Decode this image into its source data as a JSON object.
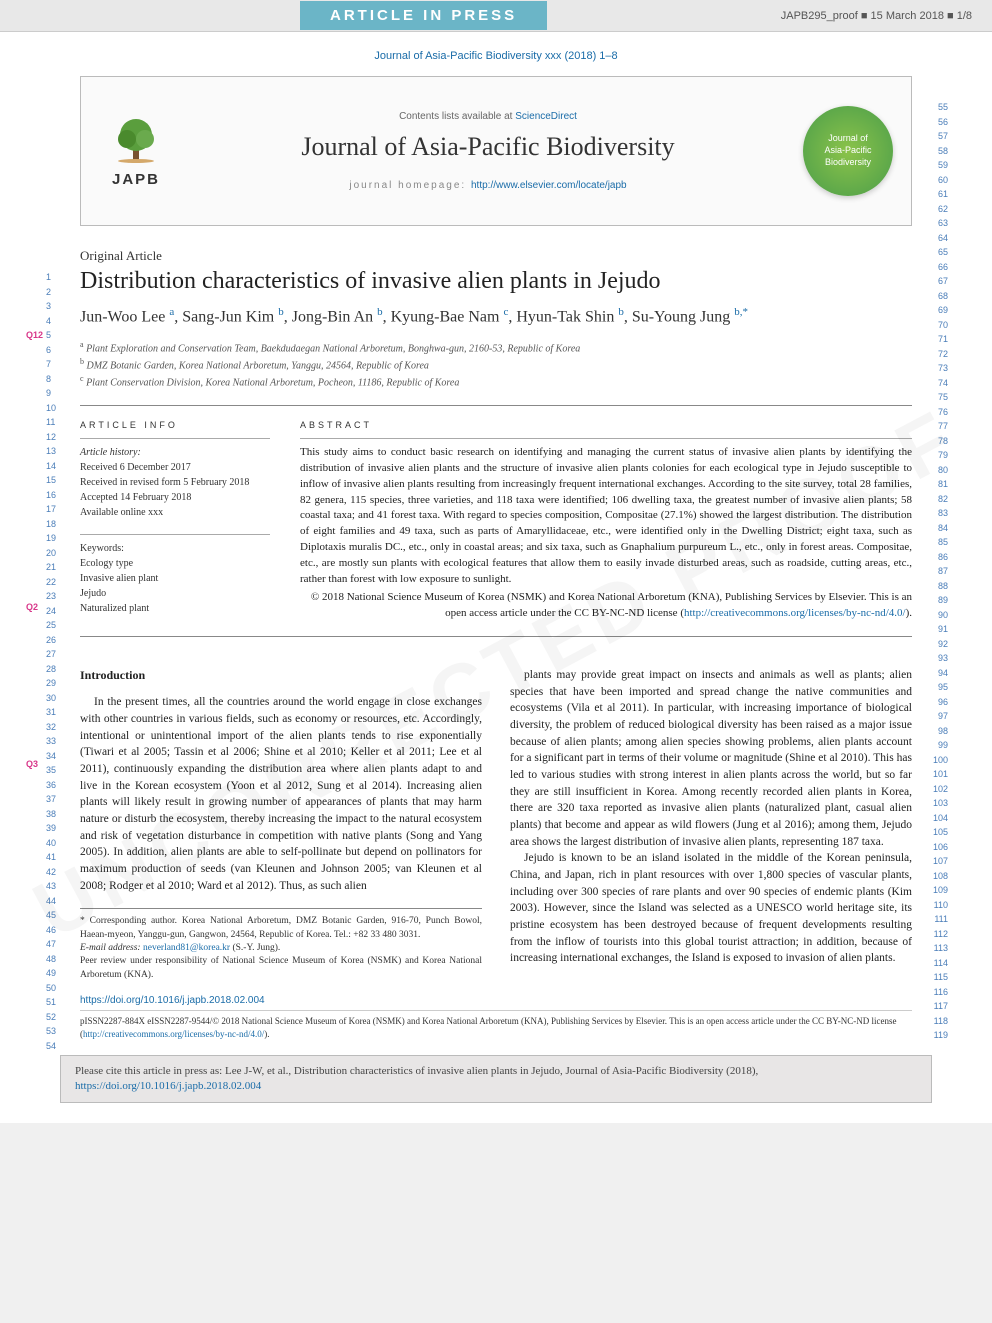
{
  "banner": {
    "article_in_press": "ARTICLE IN PRESS",
    "proof_info": "JAPB295_proof ■ 15 March 2018 ■ 1/8"
  },
  "running_head": "Journal of Asia-Pacific Biodiversity xxx (2018) 1–8",
  "journal_header": {
    "logo_label": "JAPB",
    "contents_lists_prefix": "Contents lists available at ",
    "contents_lists_link": "ScienceDirect",
    "journal_title": "Journal of Asia-Pacific Biodiversity",
    "homepage_prefix": "journal homepage: ",
    "homepage_url": "http://www.elsevier.com/locate/japb",
    "badge_line1": "Journal of",
    "badge_line2": "Asia-Pacific",
    "badge_line3": "Biodiversity"
  },
  "article": {
    "type": "Original Article",
    "title": "Distribution characteristics of invasive alien plants in Jejudo",
    "authors_html": "Jun-Woo Lee <sup>a</sup>, Sang-Jun Kim <sup>b</sup>, Jong-Bin An <sup>b</sup>, Kyung-Bae Nam <sup>c</sup>, Hyun-Tak Shin <sup>b</sup>, Su-Young Jung <sup>b,*</sup>",
    "affiliations": [
      "a Plant Exploration and Conservation Team, Baekdudaegan National Arboretum, Bonghwa-gun, 2160-53, Republic of Korea",
      "b DMZ Botanic Garden, Korea National Arboretum, Yanggu, 24564, Republic of Korea",
      "c Plant Conservation Division, Korea National Arboretum, Pocheon, 11186, Republic of Korea"
    ]
  },
  "q_markers": {
    "q12": "Q12",
    "q2": "Q2",
    "q3": "Q3"
  },
  "article_info": {
    "heading": "ARTICLE INFO",
    "history_label": "Article history:",
    "received": "Received 6 December 2017",
    "revised": "Received in revised form 5 February 2018",
    "accepted": "Accepted 14 February 2018",
    "online": "Available online xxx",
    "keywords_label": "Keywords:",
    "keywords": [
      "Ecology type",
      "Invasive alien plant",
      "Jejudo",
      "Naturalized plant"
    ]
  },
  "abstract": {
    "heading": "ABSTRACT",
    "text": "This study aims to conduct basic research on identifying and managing the current status of invasive alien plants by identifying the distribution of invasive alien plants and the structure of invasive alien plants colonies for each ecological type in Jejudo susceptible to inflow of invasive alien plants resulting from increasingly frequent international exchanges. According to the site survey, total 28 families, 82 genera, 115 species, three varieties, and 118 taxa were identified; 106 dwelling taxa, the greatest number of invasive alien plants; 58 coastal taxa; and 41 forest taxa. With regard to species composition, Compositae (27.1%) showed the largest distribution. The distribution of eight families and 49 taxa, such as parts of Amaryllidaceae, etc., were identified only in the Dwelling District; eight taxa, such as Diplotaxis muralis DC., etc., only in coastal areas; and six taxa, such as Gnaphalium purpureum L., etc., only in forest areas. Compositae, etc., are mostly sun plants with ecological features that allow them to easily invade disturbed areas, such as roadside, cutting areas, etc., rather than forest with low exposure to sunlight.",
    "copyright": "© 2018 National Science Museum of Korea (NSMK) and Korea National Arboretum (KNA), Publishing Services by Elsevier. This is an open access article under the CC BY-NC-ND license (",
    "copyright_link": "http://creativecommons.org/licenses/by-nc-nd/4.0/",
    "copyright_close": ")."
  },
  "body": {
    "intro_heading": "Introduction",
    "col1_p1": "In the present times, all the countries around the world engage in close exchanges with other countries in various fields, such as economy or resources, etc. Accordingly, intentional or unintentional import of the alien plants tends to rise exponentially (Tiwari et al 2005; Tassin et al 2006; Shine et al 2010; Keller et al 2011; Lee et al 2011), continuously expanding the distribution area where alien plants adapt to and live in the Korean ecosystem (Yoon et al 2012, Sung et al 2014). Increasing alien plants will likely result in growing number of appearances of plants that may harm nature or disturb the ecosystem, thereby increasing the impact to the natural ecosystem and risk of vegetation disturbance in competition with native plants (Song and Yang 2005). In addition, alien plants are able to self-pollinate but depend on pollinators for maximum production of seeds (van Kleunen and Johnson 2005; van Kleunen et al 2008; Rodger et al 2010; Ward et al 2012). Thus, as such alien",
    "col2_p1": "plants may provide great impact on insects and animals as well as plants; alien species that have been imported and spread change the native communities and ecosystems (Vila et al 2011). In particular, with increasing importance of biological diversity, the problem of reduced biological diversity has been raised as a major issue because of alien plants; among alien species showing problems, alien plants account for a significant part in terms of their volume or magnitude (Shine et al 2010). This has led to various studies with strong interest in alien plants across the world, but so far they are still insufficient in Korea. Among recently recorded alien plants in Korea, there are 320 taxa reported as invasive alien plants (naturalized plant, casual alien plants) that become and appear as wild flowers (Jung et al 2016); among them, Jejudo area shows the largest distribution of invasive alien plants, representing 187 taxa.",
    "col2_p2": "Jejudo is known to be an island isolated in the middle of the Korean peninsula, China, and Japan, rich in plant resources with over 1,800 species of vascular plants, including over 300 species of rare plants and over 90 species of endemic plants (Kim 2003). However, since the Island was selected as a UNESCO world heritage site, its pristine ecosystem has been destroyed because of frequent developments resulting from the inflow of tourists into this global tourist attraction; in addition, because of increasing international exchanges, the Island is exposed to invasion of alien plants."
  },
  "footnotes": {
    "corresponding": "* Corresponding author. Korea National Arboretum, DMZ Botanic Garden, 916-70, Punch Bowol, Haean-myeon, Yanggu-gun, Gangwon, 24564, Republic of Korea. Tel.: +82 33 480 3031.",
    "email_label": "E-mail address: ",
    "email": "neverland81@korea.kr",
    "email_suffix": " (S.-Y. Jung).",
    "peer_review": "Peer review under responsibility of National Science Museum of Korea (NSMK) and Korea National Arboretum (KNA)."
  },
  "doi": {
    "url": "https://doi.org/10.1016/j.japb.2018.02.004"
  },
  "issn_line": "pISSN2287-884X eISSN2287-9544/© 2018 National Science Museum of Korea (NSMK) and Korea National Arboretum (KNA), Publishing Services by Elsevier. This is an open access article under the CC BY-NC-ND license (",
  "issn_link": "http://creativecommons.org/licenses/by-nc-nd/4.0/",
  "issn_close": ").",
  "citation_box": {
    "text": "Please cite this article in press as: Lee J-W, et al., Distribution characteristics of invasive alien plants in Jejudo, Journal of Asia-Pacific Biodiversity (2018), ",
    "link": "https://doi.org/10.1016/j.japb.2018.02.004"
  },
  "line_numbers": {
    "left_start": 1,
    "left_end": 54,
    "right_start": 55,
    "right_end": 119
  },
  "colors": {
    "link": "#1a6ca8",
    "banner_bg": "#6bb5c7",
    "q_marker": "#d8378a",
    "badge_outer": "#4a9d4a",
    "badge_inner": "#8bc34a"
  }
}
